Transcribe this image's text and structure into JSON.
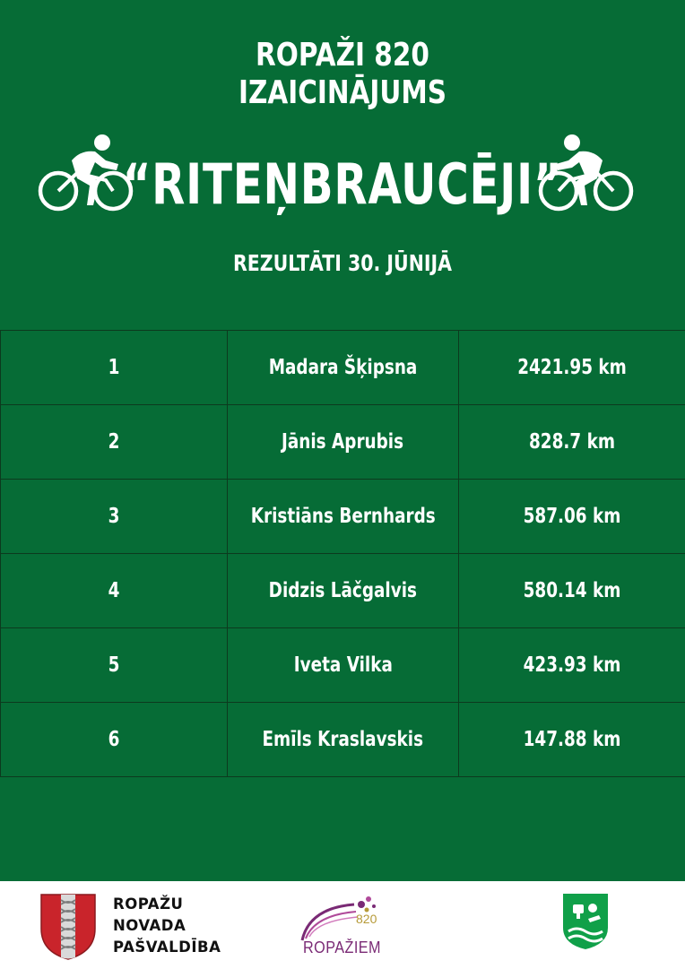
{
  "header": {
    "line1": "ROPAŽI 820",
    "line2": "IZAICINĀJUMS",
    "title": "“RITEŅBRAUCĒJI”",
    "subtitle": "REZULTĀTI 30. JŪNIJĀ"
  },
  "results": [
    {
      "place": "1",
      "name": "Madara Šķipsna",
      "distance": "2421.95 km"
    },
    {
      "place": "2",
      "name": "Jānis Aprubis",
      "distance": "828.7 km"
    },
    {
      "place": "3",
      "name": "Kristiāns Bernhards",
      "distance": "587.06 km"
    },
    {
      "place": "4",
      "name": "Didzis Lāčgalvis",
      "distance": "580.14 km"
    },
    {
      "place": "5",
      "name": "Iveta Vilka",
      "distance": "423.93 km"
    },
    {
      "place": "6",
      "name": "Emīls Kraslavskis",
      "distance": "147.88 km"
    }
  ],
  "footer": {
    "org_line1": "ROPAŽU",
    "org_line2": "NOVADA",
    "org_line3": "PAŠVALDĪBA",
    "anniversary_number": "820",
    "anniversary_word": "ROPAŽIEM"
  },
  "colors": {
    "background_green": "#066c36",
    "text_white": "#ffffff",
    "crest_red": "#c9242b",
    "shield_green": "#10a049",
    "anniversary_purple": "#7a2a75",
    "anniversary_gold": "#b69a38"
  },
  "icons": [
    "cyclist-icon",
    "cyclist-icon",
    "coat-of-arms-icon",
    "anniversary-logo-icon",
    "sports-shield-icon"
  ]
}
